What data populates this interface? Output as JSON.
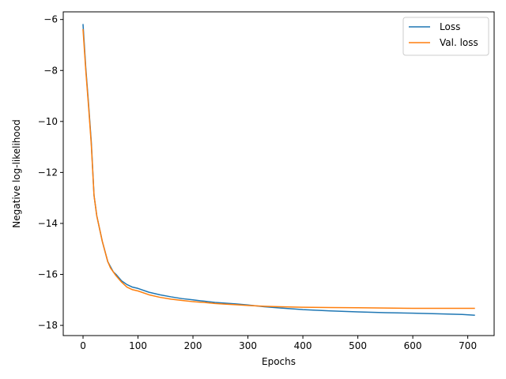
{
  "chart_data": {
    "type": "line",
    "title": "",
    "xlabel": "Epochs",
    "ylabel": "Negative log-likelihood",
    "xlim": [
      -36,
      748
    ],
    "ylim": [
      -18.4,
      -5.7
    ],
    "x_ticks": [
      0,
      100,
      200,
      300,
      400,
      500,
      600,
      700
    ],
    "y_ticks": [
      -18,
      -16,
      -14,
      -12,
      -10,
      -8,
      -6
    ],
    "y_tick_labels": [
      "−18",
      "−16",
      "−14",
      "−12",
      "−10",
      "−8",
      "−6"
    ],
    "grid": false,
    "legend_position": "top-right",
    "series": [
      {
        "name": "Loss",
        "color": "#1f77b4",
        "x": [
          0,
          5,
          10,
          15,
          20,
          25,
          30,
          35,
          40,
          45,
          50,
          55,
          60,
          70,
          80,
          90,
          100,
          120,
          140,
          160,
          180,
          200,
          220,
          240,
          260,
          280,
          300,
          330,
          360,
          400,
          450,
          500,
          550,
          600,
          650,
          690,
          712
        ],
        "y": [
          -6.2,
          -7.9,
          -9.3,
          -10.8,
          -12.9,
          -13.7,
          -14.2,
          -14.7,
          -15.1,
          -15.5,
          -15.7,
          -15.9,
          -16.0,
          -16.25,
          -16.4,
          -16.5,
          -16.55,
          -16.7,
          -16.8,
          -16.88,
          -16.95,
          -17.0,
          -17.05,
          -17.1,
          -17.13,
          -17.16,
          -17.2,
          -17.27,
          -17.32,
          -17.38,
          -17.43,
          -17.47,
          -17.5,
          -17.52,
          -17.55,
          -17.57,
          -17.6
        ]
      },
      {
        "name": "Val. loss",
        "color": "#ff7f0e",
        "x": [
          0,
          5,
          10,
          15,
          20,
          25,
          30,
          35,
          40,
          45,
          50,
          55,
          60,
          70,
          80,
          90,
          100,
          120,
          140,
          160,
          180,
          200,
          220,
          240,
          260,
          280,
          300,
          330,
          360,
          400,
          450,
          500,
          550,
          600,
          650,
          690,
          712
        ],
        "y": [
          -6.4,
          -8.0,
          -9.4,
          -10.9,
          -12.9,
          -13.7,
          -14.2,
          -14.7,
          -15.1,
          -15.5,
          -15.75,
          -15.9,
          -16.05,
          -16.3,
          -16.5,
          -16.6,
          -16.65,
          -16.8,
          -16.9,
          -16.97,
          -17.02,
          -17.07,
          -17.1,
          -17.14,
          -17.17,
          -17.19,
          -17.22,
          -17.25,
          -17.27,
          -17.29,
          -17.3,
          -17.31,
          -17.32,
          -17.33,
          -17.33,
          -17.33,
          -17.33
        ]
      }
    ]
  }
}
